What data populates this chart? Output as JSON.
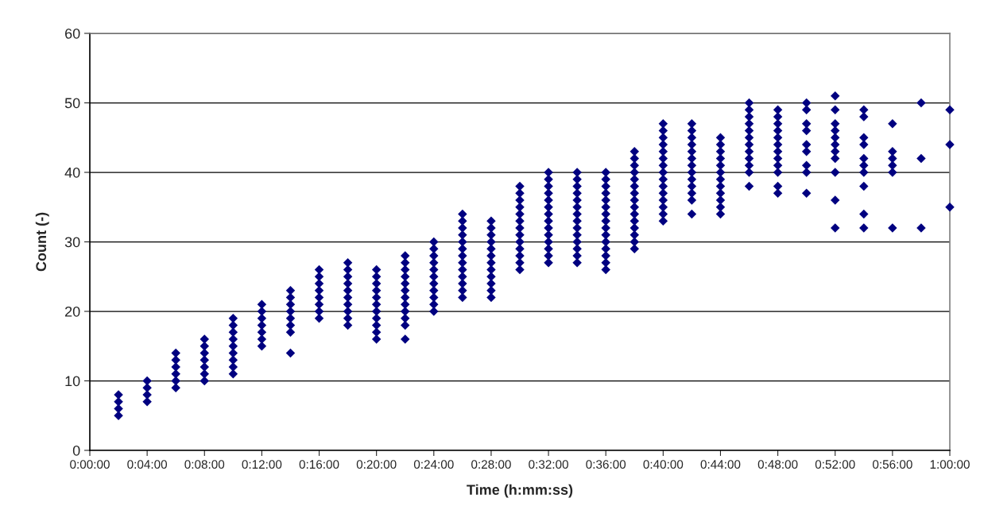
{
  "chart_data": {
    "type": "scatter",
    "xlabel": "Time (h:mm:ss)",
    "ylabel": "Count (-)",
    "marker": "diamond",
    "grid": "y",
    "legend": false,
    "xlim": [
      0,
      60
    ],
    "ylim": [
      0,
      60
    ],
    "xticks": [
      {
        "value": 0,
        "label": "0:00:00"
      },
      {
        "value": 4,
        "label": "0:04:00"
      },
      {
        "value": 8,
        "label": "0:08:00"
      },
      {
        "value": 12,
        "label": "0:12:00"
      },
      {
        "value": 16,
        "label": "0:16:00"
      },
      {
        "value": 20,
        "label": "0:20:00"
      },
      {
        "value": 24,
        "label": "0:24:00"
      },
      {
        "value": 28,
        "label": "0:28:00"
      },
      {
        "value": 32,
        "label": "0:32:00"
      },
      {
        "value": 36,
        "label": "0:36:00"
      },
      {
        "value": 40,
        "label": "0:40:00"
      },
      {
        "value": 44,
        "label": "0:44:00"
      },
      {
        "value": 48,
        "label": "0:48:00"
      },
      {
        "value": 52,
        "label": "0:52:00"
      },
      {
        "value": 56,
        "label": "0:56:00"
      },
      {
        "value": 60,
        "label": "1:00:00"
      }
    ],
    "yticks": [
      0,
      10,
      20,
      30,
      40,
      50,
      60
    ],
    "series": [
      {
        "color": "#000080",
        "x": [
          2,
          2,
          2,
          2,
          4,
          4,
          4,
          4,
          6,
          6,
          6,
          6,
          6,
          6,
          8,
          8,
          8,
          8,
          8,
          8,
          8,
          10,
          10,
          10,
          10,
          10,
          10,
          10,
          10,
          10,
          12,
          12,
          12,
          12,
          12,
          12,
          12,
          14,
          14,
          14,
          14,
          14,
          14,
          14,
          14,
          16,
          16,
          16,
          16,
          16,
          16,
          16,
          16,
          18,
          18,
          18,
          18,
          18,
          18,
          18,
          18,
          18,
          18,
          20,
          20,
          20,
          20,
          20,
          20,
          20,
          20,
          20,
          20,
          20,
          22,
          22,
          22,
          22,
          22,
          22,
          22,
          22,
          22,
          22,
          22,
          22,
          24,
          24,
          24,
          24,
          24,
          24,
          24,
          24,
          24,
          24,
          24,
          26,
          26,
          26,
          26,
          26,
          26,
          26,
          26,
          26,
          26,
          26,
          26,
          26,
          28,
          28,
          28,
          28,
          28,
          28,
          28,
          28,
          28,
          28,
          28,
          28,
          30,
          30,
          30,
          30,
          30,
          30,
          30,
          30,
          30,
          30,
          30,
          30,
          30,
          32,
          32,
          32,
          32,
          32,
          32,
          32,
          32,
          32,
          32,
          32,
          32,
          32,
          32,
          34,
          34,
          34,
          34,
          34,
          34,
          34,
          34,
          34,
          34,
          34,
          34,
          34,
          34,
          36,
          36,
          36,
          36,
          36,
          36,
          36,
          36,
          36,
          36,
          36,
          36,
          36,
          36,
          36,
          38,
          38,
          38,
          38,
          38,
          38,
          38,
          38,
          38,
          38,
          38,
          38,
          38,
          38,
          38,
          40,
          40,
          40,
          40,
          40,
          40,
          40,
          40,
          40,
          40,
          40,
          40,
          40,
          40,
          40,
          42,
          42,
          42,
          42,
          42,
          42,
          42,
          42,
          42,
          42,
          42,
          42,
          42,
          44,
          44,
          44,
          44,
          44,
          44,
          44,
          44,
          44,
          44,
          44,
          44,
          46,
          46,
          46,
          46,
          46,
          46,
          46,
          46,
          46,
          46,
          46,
          46,
          48,
          48,
          48,
          48,
          48,
          48,
          48,
          48,
          48,
          48,
          48,
          48,
          50,
          50,
          50,
          50,
          50,
          50,
          50,
          50,
          50,
          52,
          52,
          52,
          52,
          52,
          52,
          52,
          52,
          52,
          52,
          52,
          54,
          54,
          54,
          54,
          54,
          54,
          54,
          54,
          54,
          54,
          56,
          56,
          56,
          56,
          56,
          56,
          58,
          58,
          58,
          60,
          60,
          60
        ],
        "values": [
          5,
          6,
          7,
          8,
          7,
          8,
          9,
          10,
          9,
          10,
          11,
          12,
          13,
          14,
          10,
          11,
          12,
          13,
          14,
          15,
          16,
          11,
          12,
          13,
          14,
          15,
          16,
          17,
          18,
          19,
          15,
          16,
          17,
          18,
          19,
          20,
          21,
          14,
          17,
          18,
          19,
          20,
          21,
          22,
          23,
          19,
          20,
          21,
          22,
          23,
          24,
          25,
          26,
          18,
          19,
          20,
          21,
          22,
          23,
          24,
          25,
          26,
          27,
          16,
          17,
          18,
          19,
          20,
          21,
          22,
          23,
          24,
          25,
          26,
          16,
          18,
          19,
          20,
          21,
          22,
          23,
          24,
          25,
          26,
          27,
          28,
          20,
          21,
          22,
          23,
          24,
          25,
          26,
          27,
          28,
          29,
          30,
          22,
          23,
          24,
          25,
          26,
          27,
          28,
          29,
          30,
          31,
          32,
          33,
          34,
          22,
          23,
          24,
          25,
          26,
          27,
          28,
          29,
          30,
          31,
          32,
          33,
          26,
          27,
          28,
          29,
          30,
          31,
          32,
          33,
          34,
          35,
          36,
          37,
          38,
          27,
          28,
          29,
          30,
          31,
          32,
          33,
          34,
          35,
          36,
          37,
          38,
          39,
          40,
          27,
          28,
          29,
          30,
          31,
          32,
          33,
          34,
          35,
          36,
          37,
          38,
          39,
          40,
          26,
          27,
          28,
          29,
          30,
          31,
          32,
          33,
          34,
          35,
          36,
          37,
          38,
          39,
          40,
          29,
          30,
          31,
          32,
          33,
          34,
          35,
          36,
          37,
          38,
          39,
          40,
          41,
          42,
          43,
          33,
          34,
          35,
          36,
          37,
          38,
          39,
          40,
          41,
          42,
          43,
          44,
          45,
          46,
          47,
          34,
          36,
          37,
          38,
          39,
          40,
          41,
          42,
          43,
          44,
          45,
          46,
          47,
          34,
          35,
          36,
          37,
          38,
          39,
          40,
          41,
          42,
          43,
          44,
          45,
          38,
          40,
          41,
          42,
          43,
          44,
          45,
          46,
          47,
          48,
          49,
          50,
          37,
          38,
          40,
          41,
          42,
          43,
          44,
          45,
          46,
          47,
          48,
          49,
          37,
          40,
          41,
          43,
          44,
          46,
          47,
          49,
          50,
          32,
          36,
          40,
          42,
          43,
          44,
          45,
          46,
          47,
          49,
          51,
          32,
          34,
          38,
          40,
          41,
          42,
          44,
          45,
          48,
          49,
          32,
          40,
          41,
          42,
          43,
          47,
          32,
          42,
          50,
          35,
          44,
          49
        ]
      }
    ]
  }
}
